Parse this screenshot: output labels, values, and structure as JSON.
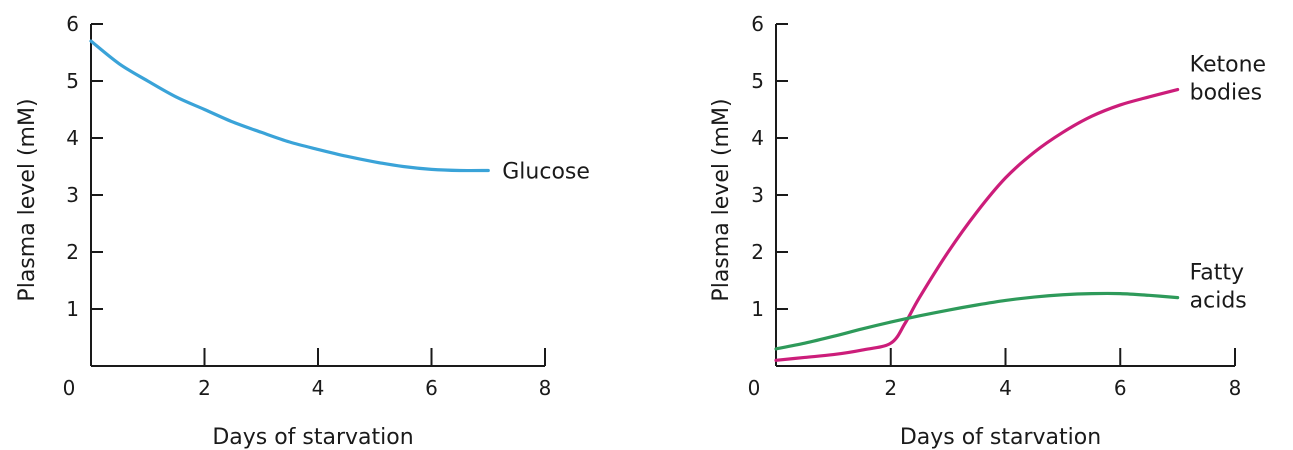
{
  "chart_data": [
    {
      "type": "line",
      "xlabel": "Days of starvation",
      "ylabel": "Plasma level (mM)",
      "xlim": [
        0,
        8
      ],
      "ylim": [
        0,
        6
      ],
      "x_ticks": [
        0,
        2,
        4,
        6,
        8
      ],
      "y_ticks": [
        1,
        2,
        3,
        4,
        5,
        6
      ],
      "y_tick_labels": [
        "1",
        "2",
        "3",
        "4",
        "5",
        "6"
      ],
      "series": [
        {
          "name": "Glucose",
          "label_lines": [
            "Glucose"
          ],
          "color": "#3aa3d8",
          "x": [
            0,
            0.5,
            1,
            1.5,
            2,
            2.5,
            3,
            3.5,
            4,
            4.5,
            5,
            5.5,
            6,
            6.5,
            7
          ],
          "y": [
            5.7,
            5.3,
            5.0,
            4.72,
            4.5,
            4.28,
            4.1,
            3.93,
            3.8,
            3.68,
            3.58,
            3.5,
            3.45,
            3.43,
            3.43
          ]
        }
      ]
    },
    {
      "type": "line",
      "xlabel": "Days of starvation",
      "ylabel": "Plasma level (mM)",
      "xlim": [
        0,
        8
      ],
      "ylim": [
        0,
        6
      ],
      "x_ticks": [
        0,
        2,
        4,
        6,
        8
      ],
      "y_ticks": [
        1,
        2,
        3,
        4,
        5,
        6
      ],
      "y_tick_labels": [
        "1",
        "2",
        "3",
        "4",
        "5",
        "6"
      ],
      "series": [
        {
          "name": "Ketone bodies",
          "label_lines": [
            "Ketone",
            "bodies"
          ],
          "color": "#cc1d7a",
          "x": [
            0,
            0.5,
            1,
            1.5,
            2,
            2.25,
            2.5,
            3,
            3.5,
            4,
            4.5,
            5,
            5.5,
            6,
            6.5,
            7
          ],
          "y": [
            0.1,
            0.15,
            0.2,
            0.28,
            0.4,
            0.75,
            1.2,
            2.0,
            2.7,
            3.3,
            3.75,
            4.1,
            4.38,
            4.58,
            4.72,
            4.85
          ]
        },
        {
          "name": "Fatty acids",
          "label_lines": [
            "Fatty",
            "acids"
          ],
          "color": "#2e9a5a",
          "x": [
            0,
            0.5,
            1,
            1.5,
            2,
            2.5,
            3,
            3.5,
            4,
            4.5,
            5,
            5.5,
            6,
            6.5,
            7
          ],
          "y": [
            0.3,
            0.4,
            0.52,
            0.65,
            0.77,
            0.88,
            0.98,
            1.07,
            1.15,
            1.21,
            1.25,
            1.27,
            1.27,
            1.24,
            1.2
          ]
        }
      ]
    }
  ]
}
